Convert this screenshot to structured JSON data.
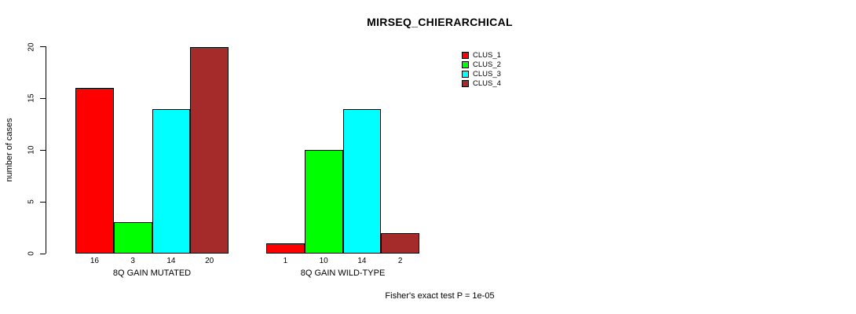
{
  "chart_data": {
    "type": "bar",
    "title": "MIRSEQ_CHIERARCHICAL",
    "ylabel": "number of cases",
    "xlabel": "",
    "footnote": "Fisher's exact test P = 1e-05",
    "ylim": [
      0,
      20
    ],
    "yticks": [
      0,
      5,
      10,
      15,
      20
    ],
    "grid": false,
    "legend_position": "top-right",
    "series_names": [
      "CLUS_1",
      "CLUS_2",
      "CLUS_3",
      "CLUS_4"
    ],
    "series_colors": [
      "#ff0000",
      "#00ff00",
      "#00ffff",
      "#a52a2a"
    ],
    "groups": [
      {
        "label": "8Q GAIN MUTATED",
        "values": [
          16,
          3,
          14,
          20
        ],
        "value_labels": [
          "16",
          "3",
          "14",
          "20"
        ]
      },
      {
        "label": "8Q GAIN WILD-TYPE",
        "values": [
          1,
          10,
          14,
          2
        ],
        "value_labels": [
          "1",
          "10",
          "14",
          "2"
        ]
      }
    ]
  }
}
